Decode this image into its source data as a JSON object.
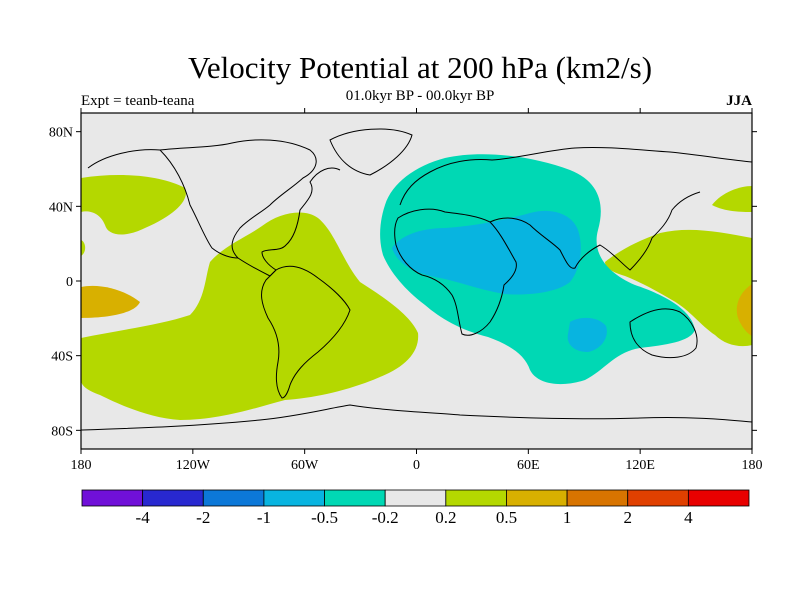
{
  "title": "Velocity Potential at 200 hPa (km2/s)",
  "subtitle": "01.0kyr BP - 00.0kyr BP",
  "left_label": "Expt = teanb-teana",
  "right_label": "JJA",
  "map": {
    "lon_range": [
      -180,
      180
    ],
    "lat_range": [
      -90,
      90
    ],
    "lat_ticks": [
      {
        "value": 80,
        "label": "80N"
      },
      {
        "value": 40,
        "label": "40N"
      },
      {
        "value": 0,
        "label": "0"
      },
      {
        "value": -40,
        "label": "40S"
      },
      {
        "value": -80,
        "label": "80S"
      }
    ],
    "lon_ticks": [
      {
        "value": -180,
        "label": "180"
      },
      {
        "value": -120,
        "label": "120W"
      },
      {
        "value": -60,
        "label": "60W"
      },
      {
        "value": 0,
        "label": "0"
      },
      {
        "value": 60,
        "label": "60E"
      },
      {
        "value": 120,
        "label": "120E"
      },
      {
        "value": 180,
        "label": "180"
      }
    ],
    "background_color": "#e8e8e8"
  },
  "colorbar": {
    "colors": [
      "#7010d8",
      "#2828d0",
      "#0c78d8",
      "#08b4e0",
      "#00d8b4",
      "#e8e8e8",
      "#b4d800",
      "#d8b000",
      "#d87400",
      "#e04000",
      "#e80000"
    ],
    "labels": [
      "-4",
      "-2",
      "-1",
      "-0.5",
      "-0.2",
      "0.2",
      "0.5",
      "1",
      "2",
      "4"
    ]
  }
}
